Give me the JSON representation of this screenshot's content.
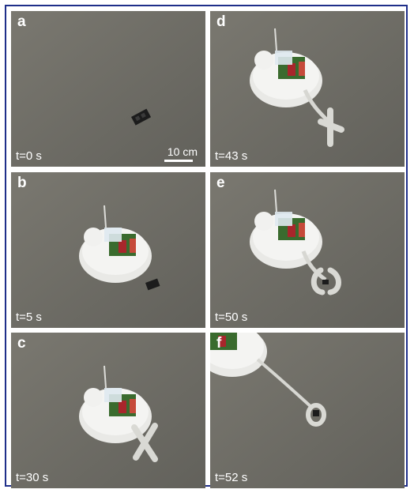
{
  "panels": [
    {
      "letter": "a",
      "time": "t=0 s",
      "scale": "10 cm"
    },
    {
      "letter": "b",
      "time": "t=5 s"
    },
    {
      "letter": "c",
      "time": "t=30 s"
    },
    {
      "letter": "d",
      "time": "t=43 s"
    },
    {
      "letter": "e",
      "time": "t=50 s"
    },
    {
      "letter": "f",
      "time": "t=52 s"
    }
  ],
  "colors": {
    "frame": "#1f2f8a",
    "floor": "#72716b",
    "label": "#ffffff"
  }
}
